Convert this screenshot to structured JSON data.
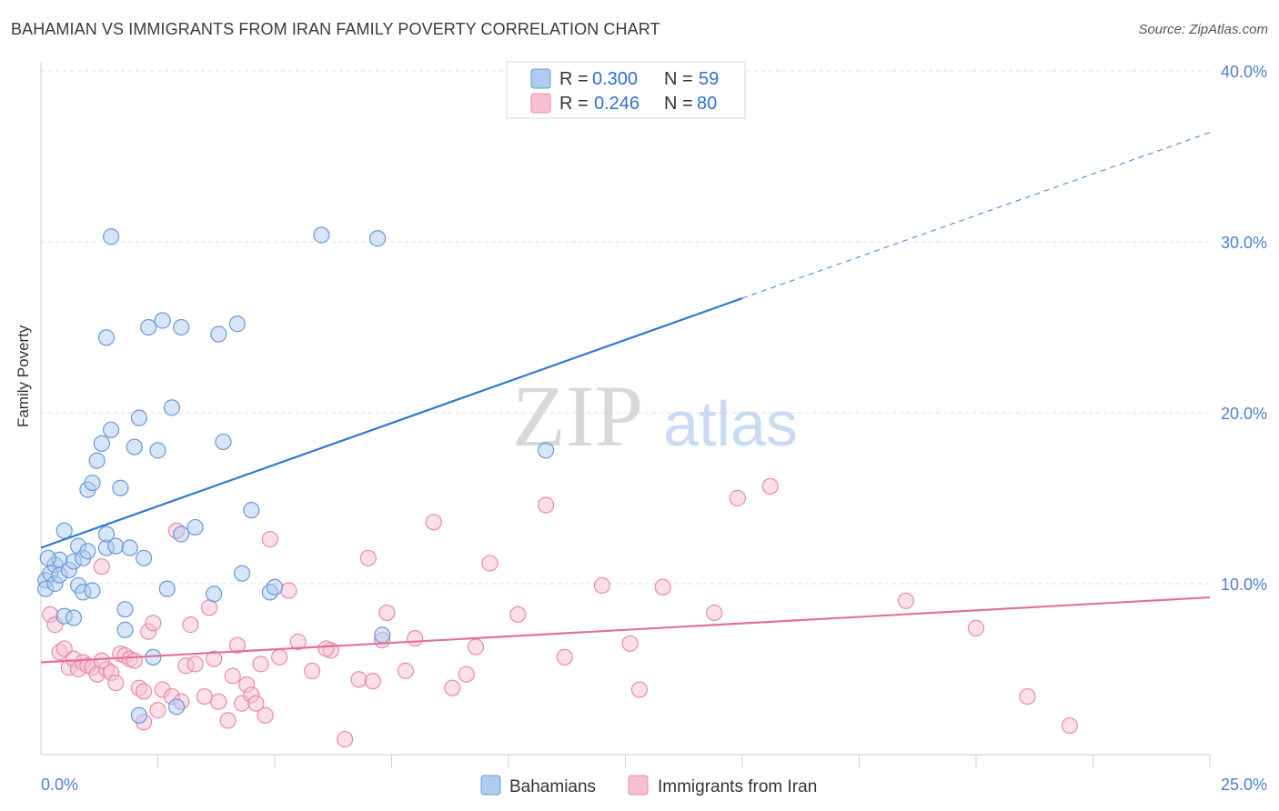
{
  "header": {
    "title": "BAHAMIAN VS IMMIGRANTS FROM IRAN FAMILY POVERTY CORRELATION CHART",
    "source": "Source: ZipAtlas.com"
  },
  "watermark": {
    "zip": "ZIP",
    "atlas": "atlas"
  },
  "chart_data": {
    "type": "scatter",
    "title": "BAHAMIAN VS IMMIGRANTS FROM IRAN FAMILY POVERTY CORRELATION CHART",
    "ylabel": "Family Poverty",
    "xlim": [
      0,
      25
    ],
    "ylim": [
      0,
      40
    ],
    "x_tick_labels": [
      "0.0%",
      "25.0%"
    ],
    "y_ticks": [
      10,
      20,
      30,
      40
    ],
    "y_tick_labels": [
      "10.0%",
      "20.0%",
      "30.0%",
      "40.0%"
    ],
    "grid": true,
    "legend_position": "top-center",
    "colors": {
      "bahamians_fill": "#aecbf0",
      "bahamians_stroke": "#6a9ad8",
      "bahamians_line": "#2f78d2",
      "iran_fill": "#f7bfd2",
      "iran_stroke": "#e98aab",
      "iran_line": "#e56f99",
      "value_text": "#2f6fcf"
    },
    "legend": [
      {
        "r_label": "R =",
        "r_value": "0.300",
        "n_label": "N =",
        "n_value": "59"
      },
      {
        "r_label": "R =",
        "r_value": "0.246",
        "n_label": "N =",
        "n_value": "80"
      }
    ],
    "series": [
      {
        "name": "Bahamians",
        "trend": {
          "x0": 0,
          "y0": 12.1,
          "x1": 15,
          "y1": 26.7,
          "dash_to_x": 25,
          "dash_to_y": 36.4
        },
        "points": [
          [
            0.1,
            10.2
          ],
          [
            0.1,
            9.7
          ],
          [
            0.2,
            10.6
          ],
          [
            0.3,
            10.0
          ],
          [
            0.3,
            11.1
          ],
          [
            0.4,
            11.4
          ],
          [
            0.4,
            10.5
          ],
          [
            0.5,
            13.1
          ],
          [
            0.5,
            8.1
          ],
          [
            0.6,
            10.8
          ],
          [
            0.7,
            8.0
          ],
          [
            0.7,
            11.3
          ],
          [
            0.8,
            12.2
          ],
          [
            0.8,
            9.9
          ],
          [
            0.9,
            9.5
          ],
          [
            0.9,
            11.5
          ],
          [
            1.0,
            11.9
          ],
          [
            1.0,
            15.5
          ],
          [
            1.1,
            15.9
          ],
          [
            1.1,
            9.6
          ],
          [
            1.2,
            17.2
          ],
          [
            1.3,
            18.2
          ],
          [
            1.4,
            12.1
          ],
          [
            1.4,
            12.9
          ],
          [
            1.4,
            24.4
          ],
          [
            1.5,
            30.3
          ],
          [
            1.5,
            19.0
          ],
          [
            1.6,
            12.2
          ],
          [
            1.7,
            15.6
          ],
          [
            1.8,
            8.5
          ],
          [
            1.8,
            7.3
          ],
          [
            1.9,
            12.1
          ],
          [
            2.0,
            18.0
          ],
          [
            2.1,
            19.7
          ],
          [
            2.1,
            2.3
          ],
          [
            2.2,
            11.5
          ],
          [
            2.3,
            25.0
          ],
          [
            2.4,
            5.7
          ],
          [
            2.5,
            17.8
          ],
          [
            2.6,
            25.4
          ],
          [
            2.7,
            9.7
          ],
          [
            2.8,
            20.3
          ],
          [
            2.9,
            2.8
          ],
          [
            3.0,
            12.9
          ],
          [
            3.0,
            25.0
          ],
          [
            3.3,
            13.3
          ],
          [
            3.7,
            9.4
          ],
          [
            3.8,
            24.6
          ],
          [
            3.9,
            18.3
          ],
          [
            4.2,
            25.2
          ],
          [
            4.3,
            10.6
          ],
          [
            4.5,
            14.3
          ],
          [
            4.9,
            9.5
          ],
          [
            5.0,
            9.8
          ],
          [
            6.0,
            30.4
          ],
          [
            7.2,
            30.2
          ],
          [
            7.3,
            7.0
          ],
          [
            10.8,
            17.8
          ],
          [
            0.15,
            11.5
          ]
        ]
      },
      {
        "name": "Immigrants from Iran",
        "trend": {
          "x0": 0,
          "y0": 5.4,
          "x1": 25,
          "y1": 9.2
        },
        "points": [
          [
            0.2,
            8.2
          ],
          [
            0.3,
            7.6
          ],
          [
            0.4,
            6.0
          ],
          [
            0.5,
            6.2
          ],
          [
            0.6,
            5.1
          ],
          [
            0.7,
            5.6
          ],
          [
            0.8,
            5.0
          ],
          [
            0.9,
            5.4
          ],
          [
            1.0,
            5.2
          ],
          [
            1.1,
            5.1
          ],
          [
            1.2,
            4.7
          ],
          [
            1.3,
            11.0
          ],
          [
            1.4,
            5.0
          ],
          [
            1.5,
            4.8
          ],
          [
            1.6,
            4.2
          ],
          [
            1.7,
            5.9
          ],
          [
            1.8,
            5.8
          ],
          [
            1.9,
            5.6
          ],
          [
            2.0,
            5.5
          ],
          [
            2.1,
            3.9
          ],
          [
            2.2,
            3.7
          ],
          [
            2.3,
            7.2
          ],
          [
            2.4,
            7.7
          ],
          [
            2.5,
            2.6
          ],
          [
            2.6,
            3.8
          ],
          [
            2.8,
            3.4
          ],
          [
            2.9,
            13.1
          ],
          [
            3.0,
            3.1
          ],
          [
            3.1,
            5.2
          ],
          [
            3.2,
            7.6
          ],
          [
            3.3,
            5.3
          ],
          [
            3.5,
            3.4
          ],
          [
            3.6,
            8.6
          ],
          [
            3.7,
            5.6
          ],
          [
            3.8,
            3.1
          ],
          [
            4.0,
            2.0
          ],
          [
            4.1,
            4.6
          ],
          [
            4.2,
            6.4
          ],
          [
            4.3,
            3.0
          ],
          [
            4.4,
            4.1
          ],
          [
            4.5,
            3.5
          ],
          [
            4.6,
            3.0
          ],
          [
            4.7,
            5.3
          ],
          [
            4.8,
            2.3
          ],
          [
            4.9,
            12.6
          ],
          [
            5.1,
            5.7
          ],
          [
            5.3,
            9.6
          ],
          [
            5.5,
            6.6
          ],
          [
            5.8,
            4.9
          ],
          [
            6.2,
            6.1
          ],
          [
            6.5,
            0.9
          ],
          [
            6.8,
            4.4
          ],
          [
            7.0,
            11.5
          ],
          [
            7.1,
            4.3
          ],
          [
            7.3,
            6.7
          ],
          [
            7.4,
            8.3
          ],
          [
            7.8,
            4.9
          ],
          [
            8.0,
            6.8
          ],
          [
            8.4,
            13.6
          ],
          [
            8.8,
            3.9
          ],
          [
            9.1,
            4.7
          ],
          [
            9.3,
            6.3
          ],
          [
            9.6,
            11.2
          ],
          [
            10.2,
            8.2
          ],
          [
            10.8,
            14.6
          ],
          [
            11.2,
            5.7
          ],
          [
            12.0,
            9.9
          ],
          [
            12.6,
            6.5
          ],
          [
            12.8,
            3.8
          ],
          [
            13.3,
            9.8
          ],
          [
            14.4,
            8.3
          ],
          [
            14.9,
            15.0
          ],
          [
            15.6,
            15.7
          ],
          [
            18.5,
            9.0
          ],
          [
            20.0,
            7.4
          ],
          [
            21.1,
            3.4
          ],
          [
            22.0,
            1.7
          ],
          [
            6.1,
            6.2
          ],
          [
            2.2,
            1.9
          ],
          [
            1.3,
            5.5
          ]
        ]
      }
    ]
  },
  "bottom_legend": {
    "series1": "Bahamians",
    "series2": "Immigrants from Iran"
  }
}
